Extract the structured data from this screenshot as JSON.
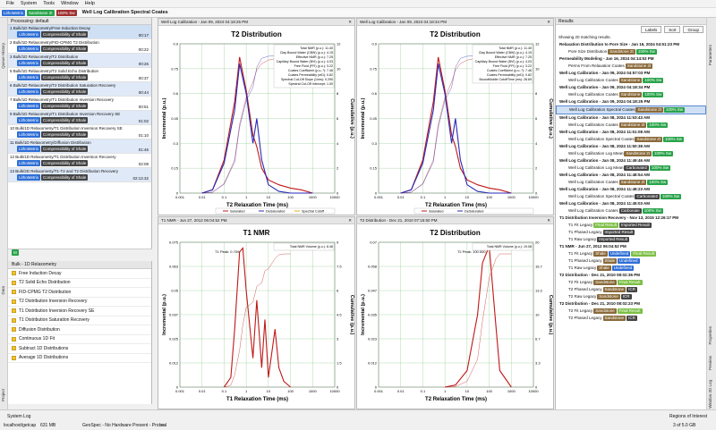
{
  "menu": [
    "File",
    "System",
    "Tools",
    "Window",
    "Help"
  ],
  "badges": {
    "user": "LithoMetrix",
    "mode": "Sandstone 2t",
    "sat": "100% Sw",
    "window_title": "Well Log Calibration Spectral Coates"
  },
  "queue": {
    "processing": "Processing: default",
    "items": [
      {
        "label": "1 Bulk/1D Relaxometry/Free Induction Decay",
        "tag": "Compressibility of Shale",
        "time": "00:17"
      },
      {
        "label": "2 Bulk/1D Relaxometry/FID-CPMG T2 Distribution",
        "tag": "Compressibility of Shale",
        "time": "00:22"
      },
      {
        "label": "3 Bulk/1D Relaxometry/T2 Distribution",
        "tag": "Compressibility of Shale",
        "time": "00:26"
      },
      {
        "label": "5 Bulk/1D Relaxometry/T2 Solid Echo Distribution",
        "tag": "Compressibility of Shale",
        "time": "00:37"
      },
      {
        "label": "6 Bulk/1D Relaxometry/T2 Distribution Saturation Recovery",
        "tag": "Compressibility of Shale",
        "time": "00:44"
      },
      {
        "label": "7 Bulk/1D Relaxometry/T1 Distribution Inversion Recovery",
        "tag": "Compressibility of Shale",
        "time": "00:51"
      },
      {
        "label": "9 Bulk/1D Relaxometry/T1 Distribution Inversion Recovery SE",
        "tag": "Compressibility of Shale",
        "time": "01:02"
      },
      {
        "label": "10 Bulk/1D Relaxometry/T1 Distribution Inversion Recovery SE",
        "tag": "Compressibility of Shale",
        "time": "01:10"
      },
      {
        "label": "11 Bulk/1D Relaxometry/Diffusion Distribution",
        "tag": "Compressibility of Shale",
        "time": "01:46"
      },
      {
        "label": "12 Bulk/1D Relaxometry/T1 Distribution Inversion Recovery",
        "tag": "Compressibility of Shale",
        "time": "02:08"
      },
      {
        "label": "13 Bulk/2D Relaxometry/T1-T2 and T2 Distribution Recovery",
        "tag": "Compressibility of Shale",
        "time": "02:13.32"
      }
    ],
    "user_tag": "LithoMetrix"
  },
  "palette": {
    "title": "Bulk - 1D Relaxometry",
    "items": [
      "Free Induction Decay",
      "T2 Solid Echo Distribution",
      "FID-CPMG T2 Distribution",
      "T2 Distribution Inversion Recovery",
      "T1 Distribution Inversion Recovery SE",
      "T1 Distribution Saturation Recovery",
      "Diffusion Distribution",
      "Continuous 1D Fit",
      "Subtract 1D Distributions",
      "Average 1D Distributions"
    ]
  },
  "plots": [
    {
      "header": "Well Log Calibration - Jan 09, 2024 04:18:25 PM",
      "title": "T2 Distribution",
      "ylabel": "Incremental (p.u.)",
      "y2label": "Cumulative (p.u.)",
      "xlabel": "T2 Relaxation Time (ms)",
      "legend": [
        "Total NMR (p.u.): 11.40",
        "Clay Bound Water (CBW) (p.u.): 4.15",
        "Effective NMR (p.u.): 7.25",
        "Capillary Bound Water (BVI) (p.u.): 4.03",
        "Free Fluid (FFI) (p.u.): 3.22",
        "Coates Coefficient (p.u.-¹): 7.46",
        "Coates Permeability (mD): 0.82",
        "Spectral Cut-Off Slope (1/ms): 0.290",
        "Spectral Cut-Off Intercept: 1.00"
      ],
      "bottom_legend": [
        "Saturated",
        "DeSaturated",
        "Spectral Cutoff"
      ]
    },
    {
      "header": "Well Log Calibration - Jan 09, 2024 04:18:34 PM",
      "title": "T2 Distribution",
      "ylabel": "Incremental (p.u.)",
      "y2label": "Cumulative (p.u.)",
      "xlabel": "T2 Relaxation Time (ms)",
      "legend": [
        "Total NMR (p.u.): 11.40",
        "Clay Bound Water (CBW) (p.u.): 4.15",
        "Effective NMR (p.u.): 7.25",
        "Capillary Bound Water (BVI) (p.u.): 4.03",
        "Free Fluid (FFI) (p.u.): 3.22",
        "Coates Coefficient (p.u.-¹): 7.46",
        "Coates Permeability (mD): 0.82",
        "BoundMobile CutoffTime (ms): 28.69"
      ],
      "bottom_legend": [
        "Saturated",
        "DeSaturated"
      ]
    },
    {
      "header": "T1 NMR - Jun 27, 2012 06:04:52 PM",
      "title": "T1 NMR",
      "ylabel": "Incremental (p.u.)",
      "y2label": "Cumulative (p.u.)",
      "xlabel": "T1 Relaxation Time (ms)",
      "legend": [
        "Total NMR Volume (p.u.): 8.46"
      ],
      "peak": "T1 Peak: 0.709"
    },
    {
      "header": "T2 Distribution - Dec 21, 2010 07:15:50 PM",
      "title": "T2 Distribution",
      "ylabel": "Incremental (p.u.)",
      "y2label": "Cumulative (p.u.)",
      "xlabel": "T2 Relaxation Time (ms)",
      "legend": [
        "Total NMR Volume (p.u.): 19.08"
      ],
      "peak": "T2 Peak: 100.000"
    }
  ],
  "results": {
    "title": "Results",
    "buttons": [
      "Labels",
      "Sort",
      "Group"
    ],
    "count": "Showing 20 matching results.",
    "items": [
      {
        "t": "Relaxation Distribution to Pore Size - Jan 16, 2024 04:51:23 PM",
        "k": "hd"
      },
      {
        "t": "Pore Size Distribution",
        "k": "sub",
        "tags": [
          "Sandstone 2t",
          "100% Sw"
        ]
      },
      {
        "t": "Permeability Modeling - Jan 16, 2024 04:14:53 PM",
        "k": "hd"
      },
      {
        "t": "Perms From Relaxation Coates",
        "k": "sub",
        "tags": [
          "Sandstone 2t"
        ]
      },
      {
        "t": "Well Log Calibration - Jan 09, 2024 04:57:03 PM",
        "k": "hd"
      },
      {
        "t": "Well Log Calibration Coates",
        "k": "sub",
        "tags": [
          "Sandstone",
          "100% Sw"
        ]
      },
      {
        "t": "Well Log Calibration - Jan 09, 2024 04:18:34 PM",
        "k": "hd"
      },
      {
        "t": "Well Log Calibration Coates",
        "k": "sub",
        "tags": [
          "Sandstone",
          "100% Sw"
        ]
      },
      {
        "t": "Well Log Calibration - Jan 09, 2024 04:18:25 PM",
        "k": "hd"
      },
      {
        "t": "Well Log Calibration Spectral Coates",
        "k": "sub",
        "tags": [
          "Sandstone 2t",
          "100% Sw"
        ],
        "sel": true
      },
      {
        "t": "Well Log Calibration - Jan 08, 2024 11:53:43 AM",
        "k": "hd"
      },
      {
        "t": "Well Log Calibration Coates",
        "k": "sub",
        "tags": [
          "Sandstone 2t",
          "100% Sw"
        ]
      },
      {
        "t": "Well Log Calibration - Jan 08, 2024 11:51:08 AM",
        "k": "hd"
      },
      {
        "t": "Well Log Calibration Spectral Coates",
        "k": "sub",
        "tags": [
          "Sandstone 2t",
          "100% Sw"
        ]
      },
      {
        "t": "Well Log Calibration - Jan 08, 2024 11:50:38 AM",
        "k": "hd"
      },
      {
        "t": "Well Log Calibration Log Mean",
        "k": "sub",
        "tags": [
          "Sandstone 2t",
          "100% Sw"
        ]
      },
      {
        "t": "Well Log Calibration - Jan 08, 2024 11:49:46 AM",
        "k": "hd"
      },
      {
        "t": "Well Log Calibration Log Mean",
        "k": "sub",
        "tags": [
          "Carbonate2",
          "100% Sw"
        ]
      },
      {
        "t": "Well Log Calibration - Jan 08, 2024 11:48:54 AM",
        "k": "hd"
      },
      {
        "t": "Well Log Calibration Coates",
        "k": "sub",
        "tags": [
          "Sandstone 2t",
          "100% Sw"
        ]
      },
      {
        "t": "Well Log Calibration - Jan 08, 2024 11:48:23 AM",
        "k": "hd"
      },
      {
        "t": "Well Log Calibration Spectral Coates",
        "k": "sub",
        "tags": [
          "Carbonate2",
          "100% Sw"
        ]
      },
      {
        "t": "Well Log Calibration - Jan 08, 2024 11:45:03 AM",
        "k": "hd"
      },
      {
        "t": "Well Log Calibration Coates",
        "k": "sub",
        "tags": [
          "Carbonate",
          "100% Sw"
        ]
      },
      {
        "t": "T1 Distribution Inversion Recovery - Nov 13, 2015 12:26:17 PM",
        "k": "hd"
      },
      {
        "t": "T1 Fit Legacy",
        "k": "sub",
        "tags": [
          "Final Result",
          "Imported Result"
        ]
      },
      {
        "t": "T1 Phased Legacy",
        "k": "sub",
        "tags": [
          "Imported Result"
        ]
      },
      {
        "t": "T1 Raw Legacy",
        "k": "sub",
        "tags": [
          "Imported Result"
        ]
      },
      {
        "t": "T1 NMR - Jun 27, 2012 06:04:52 PM",
        "k": "hd"
      },
      {
        "t": "T1 Fit Legacy",
        "k": "sub",
        "tags": [
          "Shale",
          "Undefined",
          "Final Result"
        ]
      },
      {
        "t": "T1 Phased Legacy",
        "k": "sub",
        "tags": [
          "Shale",
          "Undefined"
        ]
      },
      {
        "t": "T1 Raw Legacy",
        "k": "sub",
        "tags": [
          "Shale",
          "Undefined"
        ]
      },
      {
        "t": "T2 Distribution - Dec 21, 2010 08:02:36 PM",
        "k": "hd"
      },
      {
        "t": "T2 Fit Legacy",
        "k": "sub",
        "tags": [
          "Sandstone",
          "Final Result"
        ]
      },
      {
        "t": "T2 Phased Legacy",
        "k": "sub",
        "tags": [
          "Sandstone",
          "ICR"
        ]
      },
      {
        "t": "T2 Raw Legacy",
        "k": "sub",
        "tags": [
          "Sandstone",
          "ICR"
        ]
      },
      {
        "t": "T2 Distribution - Dec 21, 2010 08:02:23 PM",
        "k": "hd"
      },
      {
        "t": "T2 Fit Legacy",
        "k": "sub",
        "tags": [
          "Sandstone",
          "Final Result"
        ]
      },
      {
        "t": "T2 Phased Legacy",
        "k": "sub",
        "tags": [
          "Sandstone",
          "ICR"
        ]
      }
    ]
  },
  "left_tabs": [
    "Queue History",
    "Data",
    "Project"
  ],
  "right_tabs": [
    "Parameters",
    "Properties",
    "Preview",
    "Window 3D Log"
  ],
  "status": {
    "system_log": "System Log",
    "host": "localhost/getcap",
    "mem": "631 MB",
    "gex": "GeoSpec - No Hardware Present - Probe",
    "cal": "cal",
    "roi": "Regions of Interest",
    "pages": "3 of 5.0 GB"
  },
  "chart_data": [
    {
      "type": "line",
      "title": "T2 Distribution",
      "xlabel": "T2 Relaxation Time (ms)",
      "ylabel": "Incremental (p.u.)",
      "y2label": "Cumulative (p.u.)",
      "xscale": "log",
      "xlim": [
        0.001,
        10000
      ],
      "ylim": [
        0,
        0.9
      ],
      "y2lim": [
        0,
        12
      ],
      "x": [
        0.01,
        0.03,
        0.1,
        0.3,
        0.5,
        1,
        2,
        3,
        5,
        10,
        30,
        100,
        300,
        1000
      ],
      "series": [
        {
          "name": "Saturated",
          "values": [
            0,
            0.02,
            0.2,
            0.55,
            0.82,
            0.62,
            0.35,
            0.28,
            0.15,
            0.08,
            0.05,
            0.03,
            0.02,
            0
          ]
        },
        {
          "name": "DeSaturated",
          "values": [
            0,
            0.02,
            0.18,
            0.5,
            0.78,
            0.6,
            0.3,
            0.45,
            0.2,
            0.05,
            0.01,
            0,
            0,
            0
          ]
        }
      ]
    },
    {
      "type": "line",
      "title": "T2 Distribution",
      "xlabel": "T2 Relaxation Time (ms)",
      "ylabel": "Incremental (p.u.)",
      "y2label": "Cumulative (p.u.)",
      "xscale": "log",
      "xlim": [
        0.001,
        10000
      ],
      "ylim": [
        0,
        0.9
      ],
      "y2lim": [
        0,
        12
      ],
      "x": [
        0.01,
        0.03,
        0.1,
        0.3,
        0.5,
        1,
        2,
        3,
        5,
        10,
        30,
        100,
        300,
        1000
      ],
      "series": [
        {
          "name": "Saturated",
          "values": [
            0,
            0.02,
            0.2,
            0.55,
            0.82,
            0.62,
            0.35,
            0.28,
            0.15,
            0.08,
            0.05,
            0.03,
            0.02,
            0
          ]
        },
        {
          "name": "DeSaturated",
          "values": [
            0,
            0.02,
            0.18,
            0.5,
            0.78,
            0.6,
            0.3,
            0.45,
            0.2,
            0.05,
            0.01,
            0,
            0,
            0
          ]
        }
      ]
    },
    {
      "type": "line",
      "title": "T1 NMR",
      "xlabel": "T1 Relaxation Time (ms)",
      "ylabel": "Incremental (p.u.)",
      "y2label": "Cumulative (p.u.)",
      "xscale": "log",
      "xlim": [
        0.001,
        10000
      ],
      "ylim": [
        0,
        0.075
      ],
      "y2lim": [
        0,
        9
      ],
      "x": [
        0.1,
        0.2,
        0.3,
        0.5,
        0.7,
        1,
        2,
        3,
        5,
        7,
        10,
        20,
        30,
        50,
        100
      ],
      "series": [
        {
          "values": [
            0,
            0.005,
            0.03,
            0.07,
            0.072,
            0.05,
            0.015,
            0.045,
            0.01,
            0.035,
            0.005,
            0.03,
            0.01,
            0.003,
            0
          ]
        }
      ]
    },
    {
      "type": "line",
      "title": "T2 Distribution",
      "xlabel": "T2 Relaxation Time (ms)",
      "ylabel": "Incremental (p.u.)",
      "y2label": "Cumulative (p.u.)",
      "xscale": "log",
      "xlim": [
        0.001,
        10000
      ],
      "ylim": [
        0,
        0.07
      ],
      "y2lim": [
        0,
        20
      ],
      "x": [
        1,
        3,
        10,
        30,
        50,
        100,
        200,
        300,
        1000
      ],
      "series": [
        {
          "values": [
            0,
            0.001,
            0.008,
            0.035,
            0.06,
            0.068,
            0.03,
            0.008,
            0
          ]
        }
      ]
    }
  ]
}
